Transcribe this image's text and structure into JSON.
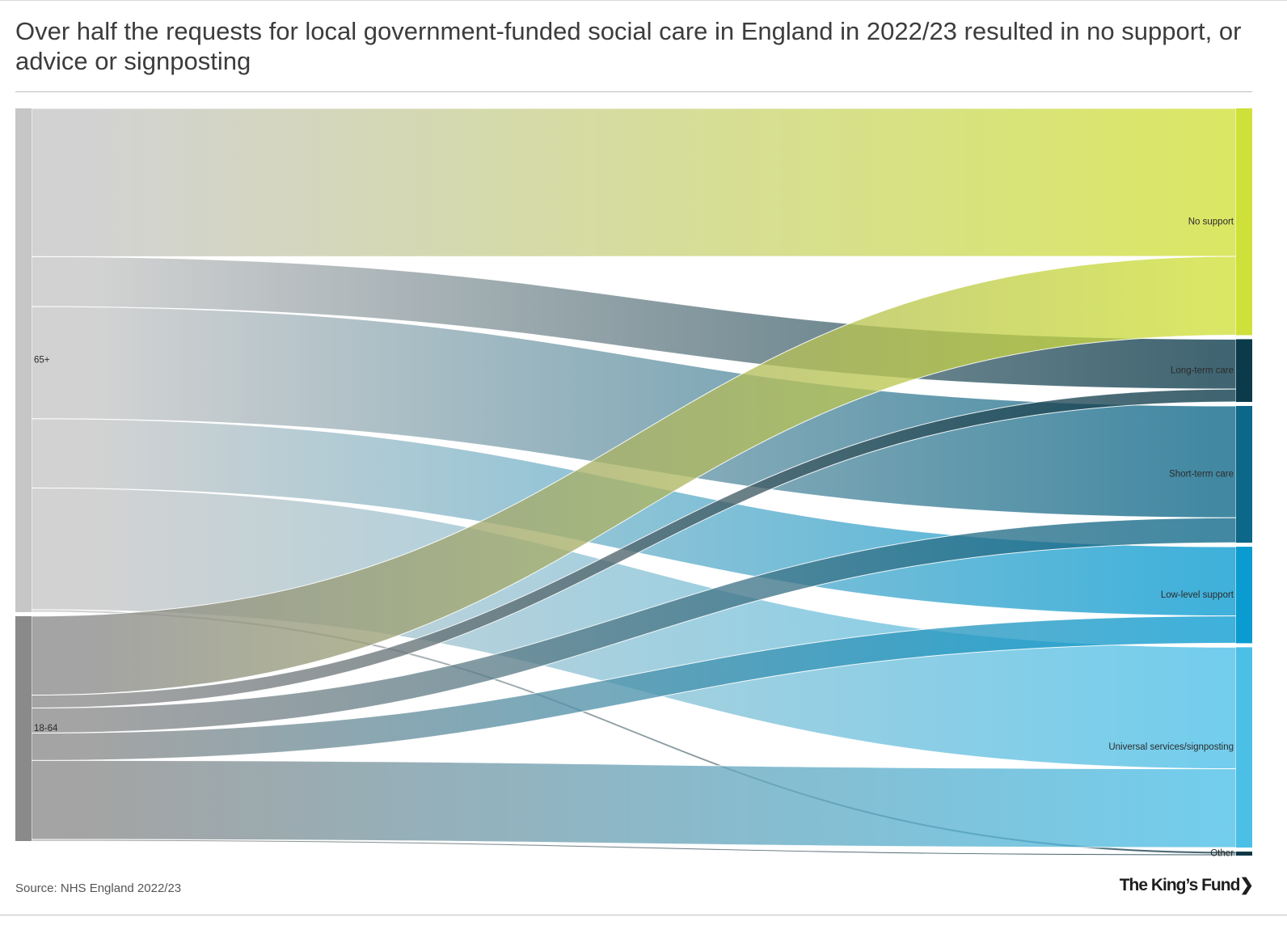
{
  "title": "Over half the requests for local government-funded social care in England in 2022/23 resulted in no support, or advice or signposting",
  "source": "Source: NHS England 2022/23",
  "logo_text": "The King's Fund",
  "chart_data": {
    "type": "sankey",
    "title": "Over half the requests for local government-funded social care in England in 2022/23 resulted in no support, or advice or signposting",
    "sources": [
      {
        "name": "65+",
        "color": "#c6c6c6"
      },
      {
        "name": "18-64",
        "color": "#8a8a8a"
      }
    ],
    "targets": [
      {
        "name": "No support",
        "color": "#cfe03a"
      },
      {
        "name": "Long-term care",
        "color": "#0b3a4a"
      },
      {
        "name": "Short-term care",
        "color": "#0d6788"
      },
      {
        "name": "Low-level support",
        "color": "#0a9bd0"
      },
      {
        "name": "Universal services/signposting",
        "color": "#4cbfe7"
      },
      {
        "name": "Other",
        "color": "#0f3846"
      }
    ],
    "flows": [
      {
        "source": "65+",
        "target": "No support",
        "value": 18.4
      },
      {
        "source": "65+",
        "target": "Long-term care",
        "value": 6.2
      },
      {
        "source": "65+",
        "target": "Short-term care",
        "value": 13.9
      },
      {
        "source": "65+",
        "target": "Low-level support",
        "value": 8.6
      },
      {
        "source": "65+",
        "target": "Universal services/signposting",
        "value": 15.1
      },
      {
        "source": "65+",
        "target": "Other",
        "value": 0.3
      },
      {
        "source": "18-64",
        "target": "No support",
        "value": 9.8
      },
      {
        "source": "18-64",
        "target": "Long-term care",
        "value": 1.6
      },
      {
        "source": "18-64",
        "target": "Short-term care",
        "value": 3.1
      },
      {
        "source": "18-64",
        "target": "Low-level support",
        "value": 3.4
      },
      {
        "source": "18-64",
        "target": "Universal services/signposting",
        "value": 9.8
      },
      {
        "source": "18-64",
        "target": "Other",
        "value": 0.2
      }
    ]
  }
}
